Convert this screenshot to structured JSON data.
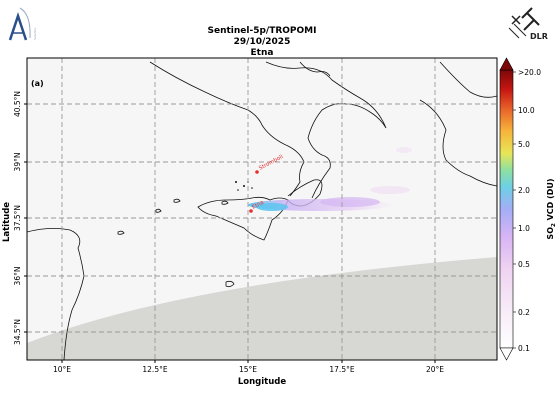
{
  "header": {
    "title_line1": "Sentinel-5p/TROPOMI",
    "title_line2": "29/10/2025",
    "title_line3": "Etna",
    "logo_right_text": "DLR",
    "logo_left_caption": "Satellite"
  },
  "map": {
    "panel_label": "(a)",
    "xlabel": "Longitude",
    "ylabel": "Latitude",
    "lon_ticks": [
      "10°E",
      "12.5°E",
      "15°E",
      "17.5°E",
      "20°E"
    ],
    "lat_ticks": [
      "40.5°N",
      "39°N",
      "37.5°N",
      "36°N",
      "34.5°N"
    ],
    "volcanoes": [
      {
        "name": "Stromboli",
        "color": "#e53030"
      },
      {
        "name": "Etna",
        "color": "#e53030"
      }
    ],
    "no_data_color": "#d7d8d3",
    "grid": "dashed"
  },
  "colorbar": {
    "label": "SO2 VCD (DU)",
    "label_main": "SO",
    "label_sub": "2",
    "label_tail": " VCD (DU)",
    "scale": "log",
    "ticks": [
      ">20.0",
      "10.0",
      "5.0",
      "2.0",
      "1.0",
      "0.5",
      "0.2",
      "0.1"
    ],
    "colors": [
      "#ffffff",
      "#f4dcf2",
      "#cba8f0",
      "#93b4f4",
      "#5ad7c8",
      "#b8e47a",
      "#f6e04a",
      "#f7a52c",
      "#ea5a1c",
      "#c8100e",
      "#7a0606"
    ]
  }
}
